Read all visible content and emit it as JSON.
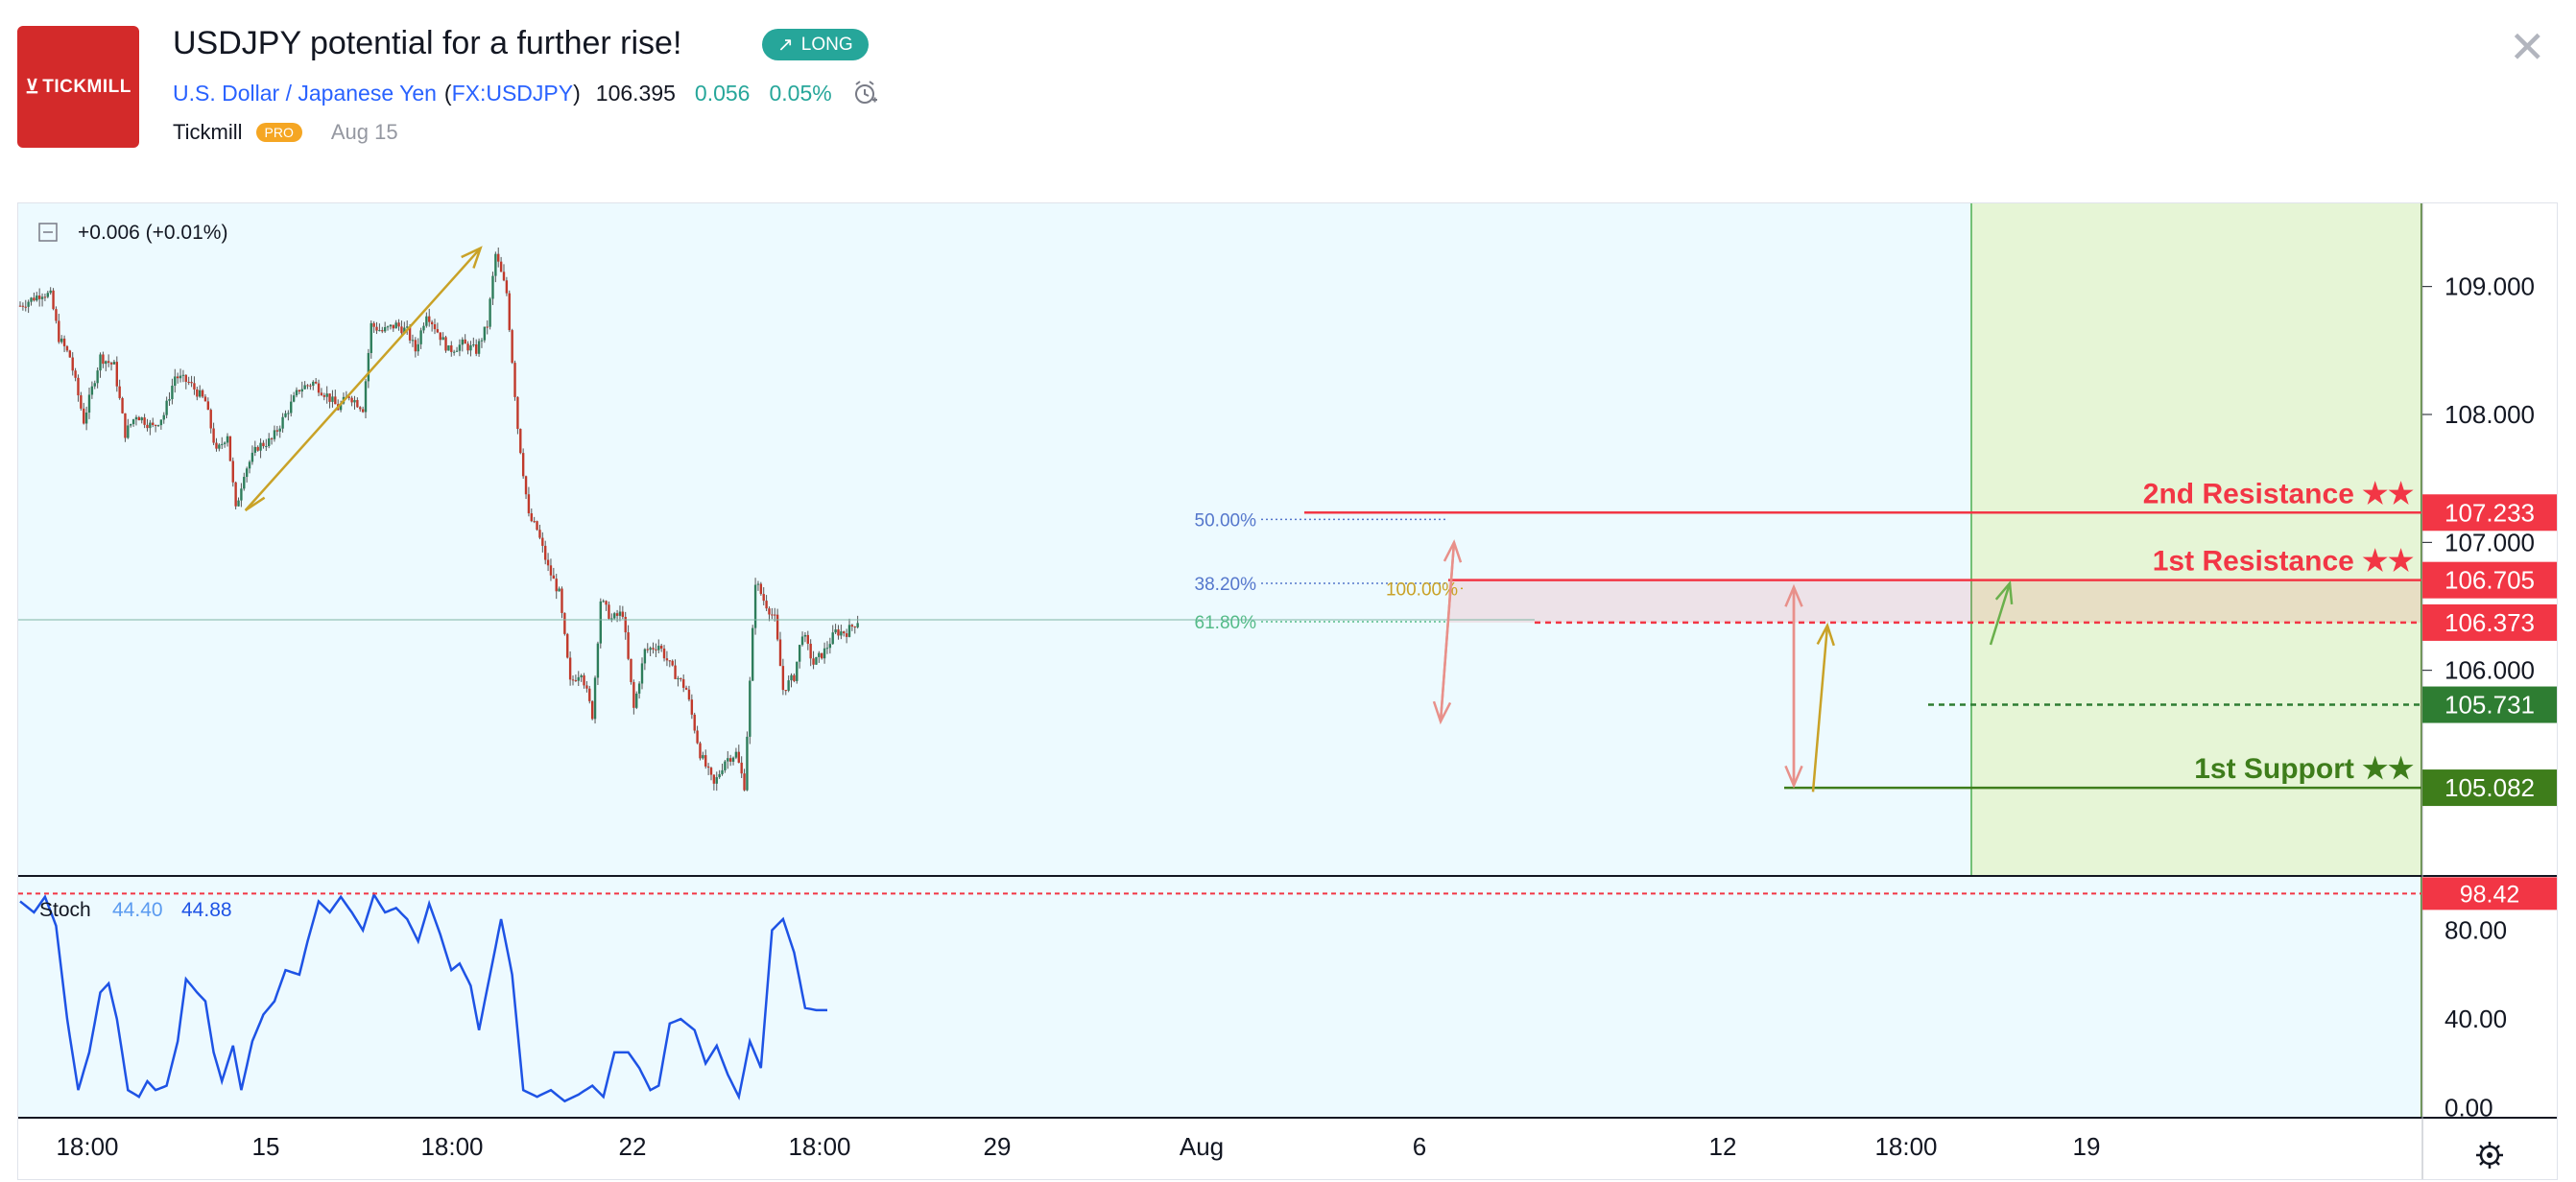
{
  "header": {
    "logo_text": "TICKMILL",
    "title": "USDJPY potential for a further rise!",
    "badge": "LONG",
    "symbol_name": "U.S. Dollar / Japanese Yen",
    "symbol_code": "FX:USDJPY",
    "price": "106.395",
    "change": "0.056",
    "change_pct": "0.05%",
    "author": "Tickmill",
    "author_tag": "PRO",
    "date": "Aug 15"
  },
  "colors": {
    "resistance": "#f23645",
    "support_dark": "#3e7d1b",
    "support_mid": "#2e7d32",
    "current": "#f23645",
    "chart_bg": "#edfaff",
    "highlight": "#e6f5d6",
    "arrow": "#c9a227",
    "stoch": "#1e53e5",
    "up_candle": "#2e7d5b",
    "down_candle": "#c0392b"
  },
  "chart_data": {
    "type": "candlestick",
    "legend": "+0.006 (+0.01%)",
    "symbol": "USDJPY",
    "price_axis": {
      "ylim": [
        104.4,
        109.65
      ],
      "ticks": [
        "109.000",
        "108.000",
        "107.000",
        "106.000"
      ]
    },
    "time_axis": {
      "ticks": [
        "18:00",
        "15",
        "18:00",
        "22",
        "18:00",
        "29",
        "Aug",
        "6",
        "12",
        "18:00",
        "19"
      ]
    },
    "close_path": [
      {
        "i": 0,
        "v": 108.85
      },
      {
        "i": 8,
        "v": 108.95
      },
      {
        "i": 11,
        "v": 108.93
      },
      {
        "i": 14,
        "v": 108.6
      },
      {
        "i": 18,
        "v": 108.45
      },
      {
        "i": 23,
        "v": 107.95
      },
      {
        "i": 26,
        "v": 108.2
      },
      {
        "i": 29,
        "v": 108.45
      },
      {
        "i": 34,
        "v": 108.38
      },
      {
        "i": 38,
        "v": 107.85
      },
      {
        "i": 42,
        "v": 108.0
      },
      {
        "i": 48,
        "v": 107.9
      },
      {
        "i": 52,
        "v": 108.0
      },
      {
        "i": 56,
        "v": 108.3
      },
      {
        "i": 61,
        "v": 108.25
      },
      {
        "i": 67,
        "v": 108.1
      },
      {
        "i": 71,
        "v": 107.7
      },
      {
        "i": 75,
        "v": 107.85
      },
      {
        "i": 78,
        "v": 107.25
      },
      {
        "i": 81,
        "v": 107.55
      },
      {
        "i": 86,
        "v": 107.75
      },
      {
        "i": 91,
        "v": 107.8
      },
      {
        "i": 96,
        "v": 108.0
      },
      {
        "i": 101,
        "v": 108.2
      },
      {
        "i": 106,
        "v": 108.25
      },
      {
        "i": 111,
        "v": 108.15
      },
      {
        "i": 115,
        "v": 108.05
      },
      {
        "i": 119,
        "v": 108.15
      },
      {
        "i": 124,
        "v": 108.05
      },
      {
        "i": 127,
        "v": 108.7
      },
      {
        "i": 131,
        "v": 108.65
      },
      {
        "i": 136,
        "v": 108.7
      },
      {
        "i": 140,
        "v": 108.65
      },
      {
        "i": 143,
        "v": 108.5
      },
      {
        "i": 147,
        "v": 108.8
      },
      {
        "i": 151,
        "v": 108.65
      },
      {
        "i": 155,
        "v": 108.5
      },
      {
        "i": 160,
        "v": 108.55
      },
      {
        "i": 165,
        "v": 108.5
      },
      {
        "i": 169,
        "v": 108.7
      },
      {
        "i": 172,
        "v": 109.25
      },
      {
        "i": 176,
        "v": 108.95
      },
      {
        "i": 180,
        "v": 107.9
      },
      {
        "i": 184,
        "v": 107.2
      },
      {
        "i": 187,
        "v": 107.1
      },
      {
        "i": 191,
        "v": 106.8
      },
      {
        "i": 195,
        "v": 106.6
      },
      {
        "i": 199,
        "v": 105.9
      },
      {
        "i": 203,
        "v": 106.0
      },
      {
        "i": 207,
        "v": 105.65
      },
      {
        "i": 210,
        "v": 106.55
      },
      {
        "i": 214,
        "v": 106.4
      },
      {
        "i": 218,
        "v": 106.45
      },
      {
        "i": 222,
        "v": 105.7
      },
      {
        "i": 226,
        "v": 106.15
      },
      {
        "i": 231,
        "v": 106.2
      },
      {
        "i": 236,
        "v": 106.0
      },
      {
        "i": 241,
        "v": 105.85
      },
      {
        "i": 246,
        "v": 105.35
      },
      {
        "i": 251,
        "v": 105.1
      },
      {
        "i": 255,
        "v": 105.3
      },
      {
        "i": 259,
        "v": 105.35
      },
      {
        "i": 262,
        "v": 105.1
      },
      {
        "i": 266,
        "v": 106.7
      },
      {
        "i": 269,
        "v": 106.55
      },
      {
        "i": 273,
        "v": 106.4
      },
      {
        "i": 276,
        "v": 105.85
      },
      {
        "i": 280,
        "v": 105.95
      },
      {
        "i": 283,
        "v": 106.3
      },
      {
        "i": 287,
        "v": 106.05
      },
      {
        "i": 291,
        "v": 106.15
      },
      {
        "i": 295,
        "v": 106.3
      },
      {
        "i": 299,
        "v": 106.3
      },
      {
        "i": 303,
        "v": 106.39
      }
    ],
    "levels": [
      {
        "price": 107.233,
        "tag": "107.233",
        "label": "2nd Resistance ★★",
        "style": "solid",
        "kind": "resistance"
      },
      {
        "price": 106.705,
        "tag": "106.705",
        "label": "1st Resistance ★★",
        "style": "solid",
        "kind": "resistance"
      },
      {
        "price": 106.373,
        "tag": "106.373",
        "label": "",
        "style": "dashed",
        "kind": "current"
      },
      {
        "price": 105.731,
        "tag": "105.731",
        "label": "",
        "style": "dashed",
        "kind": "support_mid"
      },
      {
        "price": 105.082,
        "tag": "105.082",
        "label": "1st Support ★★",
        "style": "solid",
        "kind": "support"
      }
    ],
    "fib_labels": [
      {
        "text": "50.00%",
        "price": 107.18
      },
      {
        "text": "38.20%",
        "price": 106.68
      },
      {
        "text": "61.80%",
        "price": 106.38
      },
      {
        "text": "100.00%",
        "price": 106.64
      }
    ],
    "stochastic": {
      "label": "Stoch",
      "k": "44.40",
      "d": "44.88",
      "ticks": [
        "80.00",
        "40.00",
        "0.00"
      ],
      "overbought_tag": "98.42",
      "ylim": [
        -4,
        104
      ],
      "values": [
        {
          "i": 0,
          "v": 93
        },
        {
          "i": 5,
          "v": 88
        },
        {
          "i": 9,
          "v": 95
        },
        {
          "i": 13,
          "v": 82
        },
        {
          "i": 17,
          "v": 40
        },
        {
          "i": 21,
          "v": 8
        },
        {
          "i": 25,
          "v": 25
        },
        {
          "i": 29,
          "v": 52
        },
        {
          "i": 32,
          "v": 56
        },
        {
          "i": 35,
          "v": 40
        },
        {
          "i": 39,
          "v": 8
        },
        {
          "i": 43,
          "v": 5
        },
        {
          "i": 46,
          "v": 12
        },
        {
          "i": 49,
          "v": 8
        },
        {
          "i": 53,
          "v": 10
        },
        {
          "i": 57,
          "v": 30
        },
        {
          "i": 60,
          "v": 58
        },
        {
          "i": 64,
          "v": 52
        },
        {
          "i": 67,
          "v": 48
        },
        {
          "i": 70,
          "v": 25
        },
        {
          "i": 73,
          "v": 12
        },
        {
          "i": 77,
          "v": 28
        },
        {
          "i": 80,
          "v": 8
        },
        {
          "i": 84,
          "v": 30
        },
        {
          "i": 88,
          "v": 42
        },
        {
          "i": 92,
          "v": 48
        },
        {
          "i": 96,
          "v": 62
        },
        {
          "i": 101,
          "v": 60
        },
        {
          "i": 104,
          "v": 75
        },
        {
          "i": 108,
          "v": 93
        },
        {
          "i": 112,
          "v": 88
        },
        {
          "i": 116,
          "v": 95
        },
        {
          "i": 120,
          "v": 88
        },
        {
          "i": 124,
          "v": 80
        },
        {
          "i": 128,
          "v": 96
        },
        {
          "i": 132,
          "v": 88
        },
        {
          "i": 136,
          "v": 90
        },
        {
          "i": 140,
          "v": 85
        },
        {
          "i": 144,
          "v": 75
        },
        {
          "i": 148,
          "v": 92
        },
        {
          "i": 152,
          "v": 78
        },
        {
          "i": 156,
          "v": 62
        },
        {
          "i": 159,
          "v": 65
        },
        {
          "i": 163,
          "v": 55
        },
        {
          "i": 166,
          "v": 35
        },
        {
          "i": 170,
          "v": 60
        },
        {
          "i": 174,
          "v": 85
        },
        {
          "i": 178,
          "v": 60
        },
        {
          "i": 182,
          "v": 8
        },
        {
          "i": 187,
          "v": 5
        },
        {
          "i": 192,
          "v": 8
        },
        {
          "i": 197,
          "v": 3
        },
        {
          "i": 202,
          "v": 6
        },
        {
          "i": 207,
          "v": 10
        },
        {
          "i": 211,
          "v": 5
        },
        {
          "i": 215,
          "v": 25
        },
        {
          "i": 220,
          "v": 25
        },
        {
          "i": 224,
          "v": 18
        },
        {
          "i": 228,
          "v": 8
        },
        {
          "i": 231,
          "v": 10
        },
        {
          "i": 235,
          "v": 38
        },
        {
          "i": 239,
          "v": 40
        },
        {
          "i": 244,
          "v": 35
        },
        {
          "i": 248,
          "v": 20
        },
        {
          "i": 252,
          "v": 28
        },
        {
          "i": 256,
          "v": 15
        },
        {
          "i": 260,
          "v": 5
        },
        {
          "i": 264,
          "v": 30
        },
        {
          "i": 268,
          "v": 18
        },
        {
          "i": 272,
          "v": 80
        },
        {
          "i": 276,
          "v": 85
        },
        {
          "i": 280,
          "v": 70
        },
        {
          "i": 284,
          "v": 45
        },
        {
          "i": 288,
          "v": 44
        },
        {
          "i": 292,
          "v": 44
        }
      ]
    }
  }
}
